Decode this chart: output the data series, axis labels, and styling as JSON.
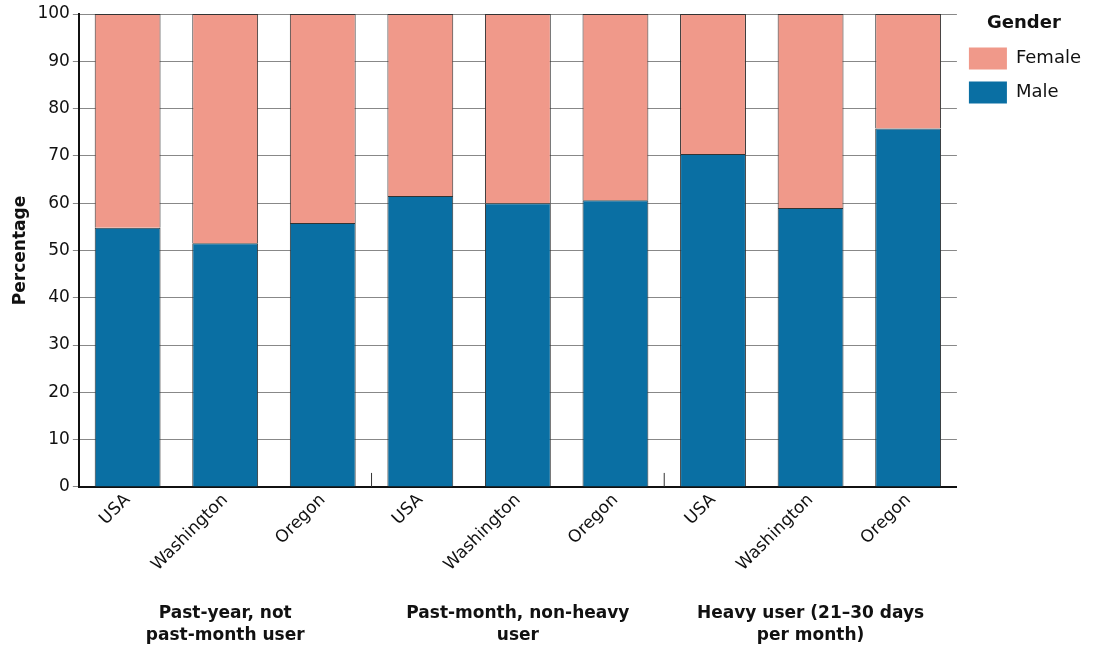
{
  "chart_data": {
    "type": "bar",
    "stacked": true,
    "ylabel": "Percentage",
    "legend_title": "Gender",
    "legend": "top right",
    "categories": [
      "USA",
      "Washington",
      "Oregon",
      "USA",
      "Washington",
      "Oregon",
      "USA",
      "Washington",
      "Oregon"
    ],
    "series": [
      {
        "name": "Male",
        "color": "#0a6fa3",
        "values": [
          54.8,
          51.5,
          55.8,
          61.5,
          60,
          60.6,
          70.4,
          59,
          75.8
        ]
      },
      {
        "name": "Female",
        "color": "#f0998a",
        "values": [
          45.2,
          48.5,
          44.2,
          38.5,
          40,
          39.4,
          29.6,
          41,
          24.2
        ]
      }
    ],
    "ylim": [
      0,
      100
    ],
    "yticks": [
      0,
      10,
      20,
      30,
      40,
      50,
      60,
      70,
      80,
      90,
      100
    ],
    "grid": "y",
    "annotations": [
      "Past-year, not past-month user",
      "Past-month, non-heavy user",
      "Heavy user (21–30 days per month)"
    ]
  }
}
